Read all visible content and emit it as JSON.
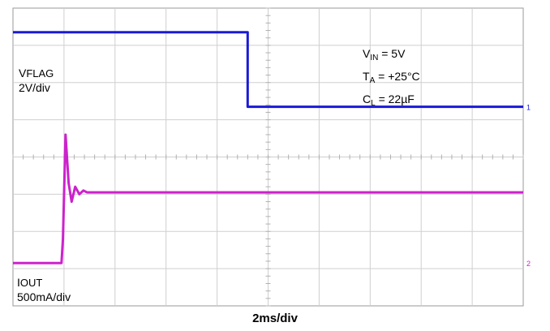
{
  "chart_data": {
    "type": "line",
    "xlabel": "2ms/div",
    "grid": true,
    "annotations": {
      "vflag_name": "V",
      "vflag_sub": "FLAG",
      "vflag_scale": "2V/div",
      "iout_name": "I",
      "iout_sub": "OUT",
      "iout_scale": "500mA/div",
      "vin_name": "V",
      "vin_sub": "IN",
      "vin_value": " = 5V",
      "ta_name": "T",
      "ta_sub": "A",
      "ta_value": " = +25°C",
      "cl_name": "C",
      "cl_sub": "L",
      "cl_value": " = 22µF"
    },
    "markers": {
      "ch1": "1",
      "ch2": "2"
    },
    "x_range_div": [
      0,
      10
    ],
    "y_range_div": [
      0,
      8
    ],
    "series": [
      {
        "channel": "ch1",
        "color": "#1a1ad6",
        "unit_per_div": "2V/div",
        "points_div": [
          [
            0,
            7.35
          ],
          [
            4.6,
            7.35
          ],
          [
            4.6,
            5.35
          ],
          [
            10,
            5.35
          ]
        ]
      },
      {
        "channel": "ch2",
        "color": "#cc22cc",
        "unit_per_div": "500mA/div",
        "points_div": [
          [
            0,
            1.15
          ],
          [
            0.95,
            1.15
          ],
          [
            0.98,
            1.8
          ],
          [
            1.03,
            4.6
          ],
          [
            1.09,
            3.3
          ],
          [
            1.15,
            2.8
          ],
          [
            1.22,
            3.2
          ],
          [
            1.3,
            3.0
          ],
          [
            1.38,
            3.1
          ],
          [
            1.45,
            3.05
          ],
          [
            10,
            3.05
          ]
        ]
      }
    ]
  }
}
